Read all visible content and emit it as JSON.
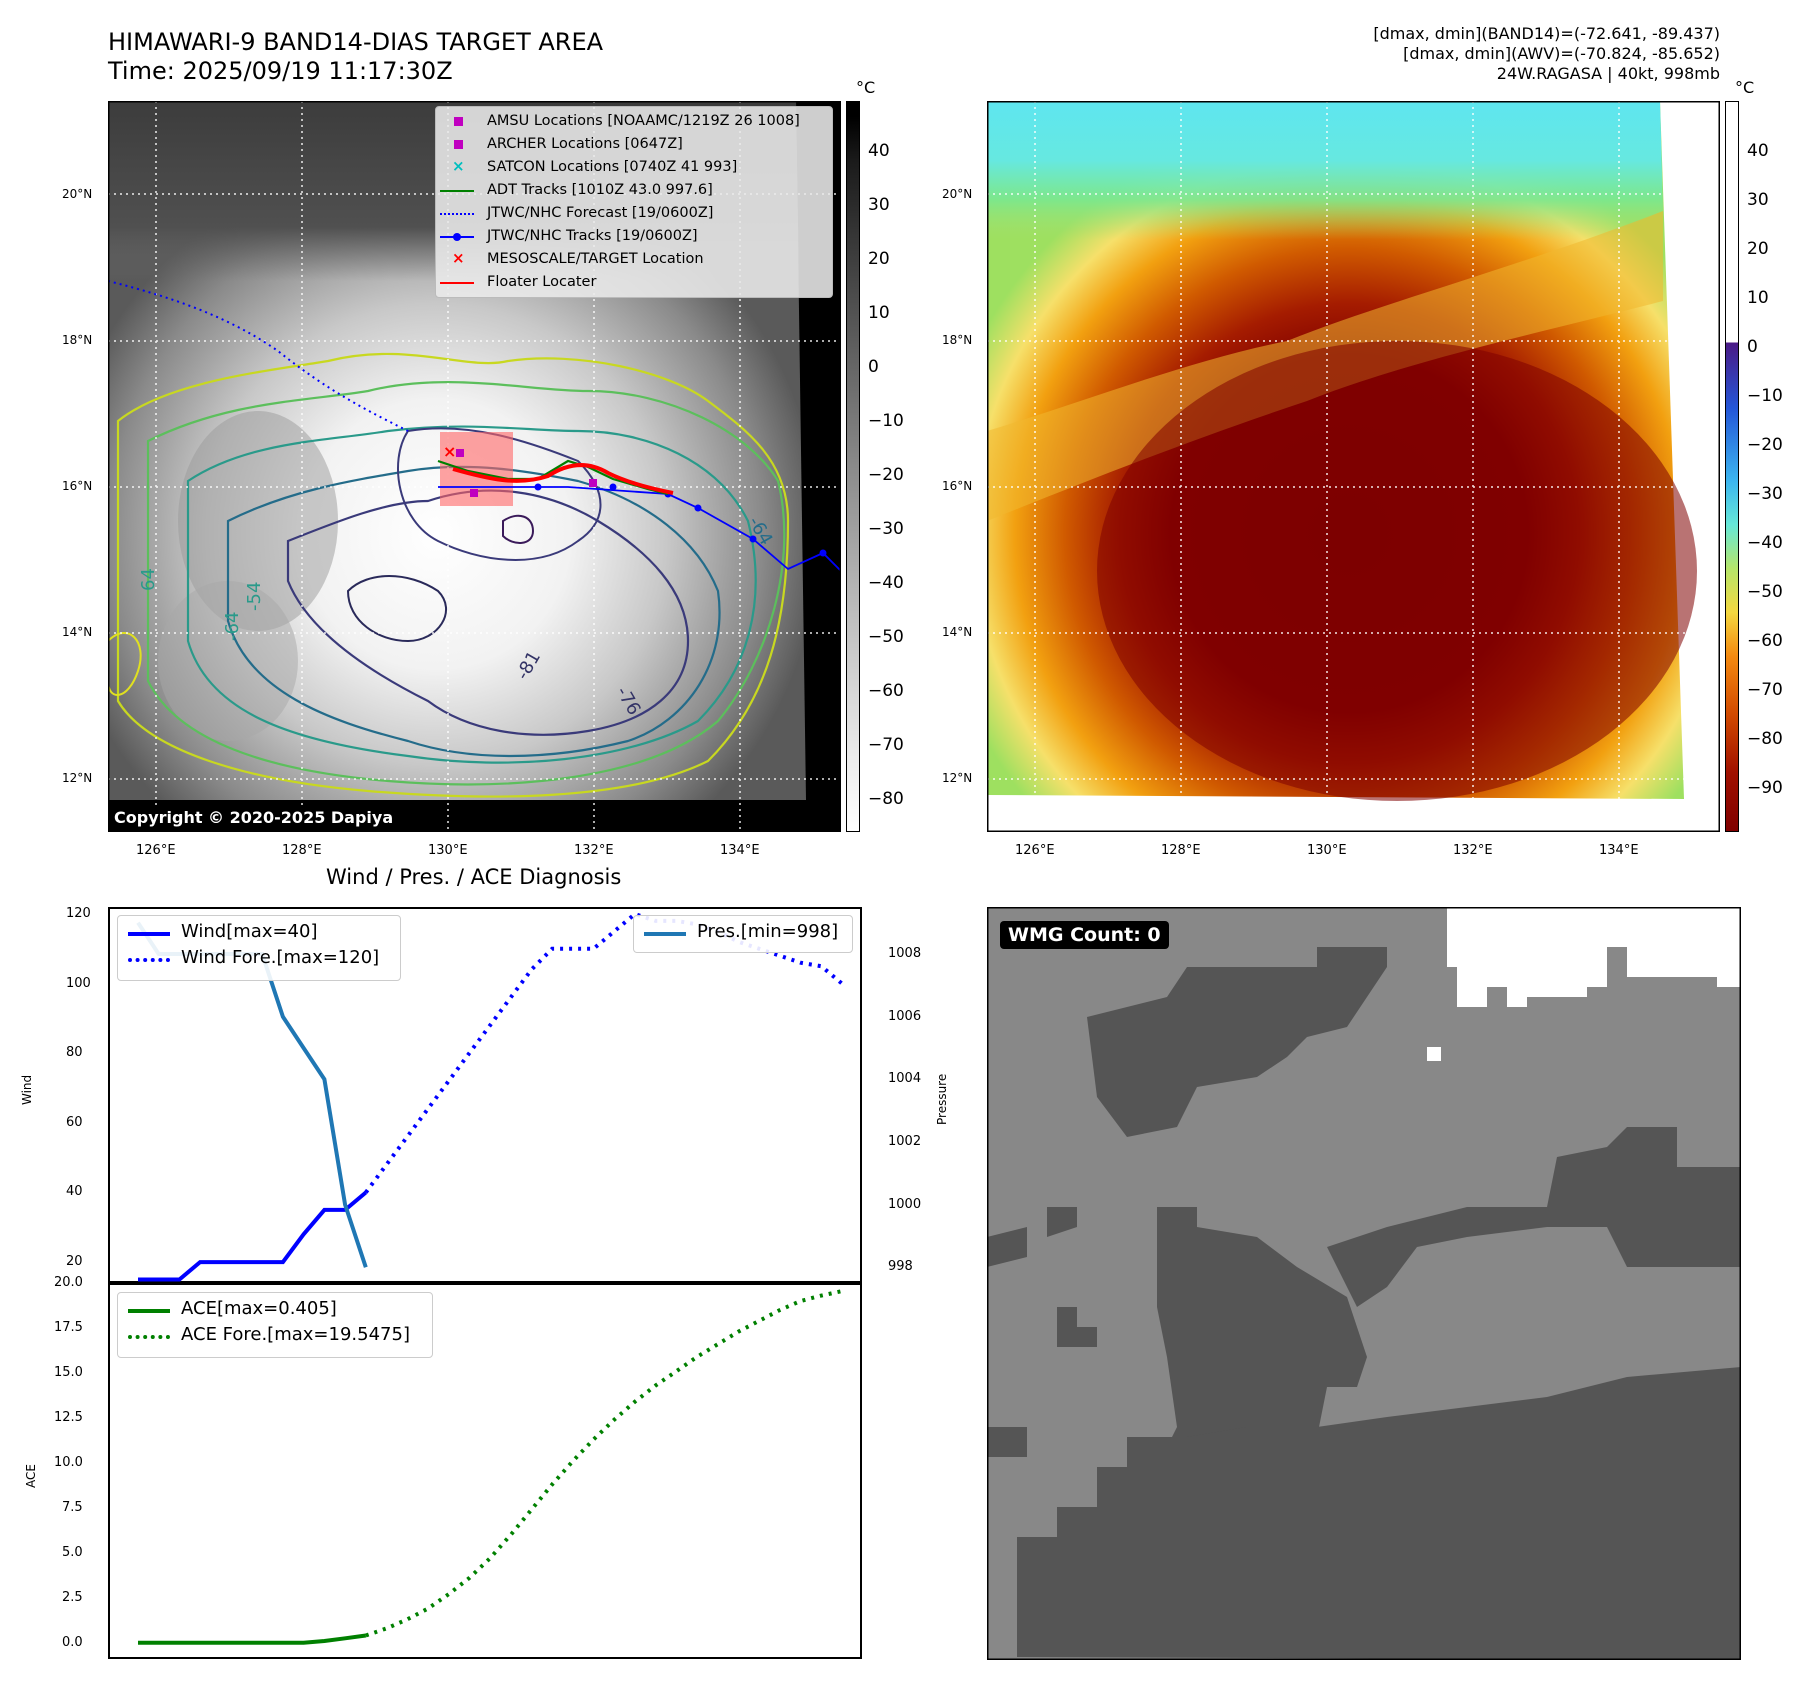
{
  "header": {
    "title_line1": "HIMAWARI-9 BAND14-DIAS TARGET AREA",
    "title_line2": "Time: 2025/09/19 11:17:30Z",
    "info_line1": "[dmax, dmin](BAND14)=(-72.641, -89.437)",
    "info_line2": "[dmax, dmin](AWV)=(-70.824, -85.652)",
    "info_line3": "24W.RAGASA | 40kt, 998mb"
  },
  "maps": {
    "lon_ticks": [
      "126°E",
      "128°E",
      "130°E",
      "132°E",
      "134°E"
    ],
    "lat_ticks": [
      "20°N",
      "18°N",
      "16°N",
      "14°N",
      "12°N"
    ],
    "copyright": "Copyright © 2020-2025 Dapiya",
    "contour_labels": [
      "-81",
      "-76",
      "-64",
      "-54",
      "-64",
      "64"
    ],
    "ir_colorbar": {
      "unit": "°C",
      "ticks": [
        "40",
        "30",
        "20",
        "10",
        "0",
        "−10",
        "−20",
        "−30",
        "−40",
        "−50",
        "−60",
        "−70",
        "−80"
      ]
    },
    "awv_colorbar": {
      "unit": "°C",
      "ticks": [
        "40",
        "30",
        "20",
        "10",
        "0",
        "−10",
        "−20",
        "−30",
        "−40",
        "−50",
        "−60",
        "−70",
        "−80",
        "−90"
      ]
    },
    "legend": [
      {
        "label": "AMSU Locations [NOAAMC/1219Z 26 1008]",
        "color": "#c000c0",
        "marker": "square"
      },
      {
        "label": "ARCHER Locations [0647Z]",
        "color": "#c000c0",
        "marker": "square"
      },
      {
        "label": "SATCON Locations [0740Z 41 993]",
        "color": "#00bfbf",
        "marker": "x"
      },
      {
        "label": "ADT Tracks [1010Z 43.0 997.6]",
        "color": "#008000",
        "marker": "line"
      },
      {
        "label": "JTWC/NHC Forecast [19/0600Z]",
        "color": "#0000ff",
        "marker": "dotted"
      },
      {
        "label": "JTWC/NHC Tracks [19/0600Z]",
        "color": "#0000ff",
        "marker": "line-dot"
      },
      {
        "label": "MESOSCALE/TARGET Location",
        "color": "#ff0000",
        "marker": "x"
      },
      {
        "label": "Floater Locater",
        "color": "#ff0000",
        "marker": "line"
      }
    ]
  },
  "diagnosis": {
    "title": "Wind / Pres. / ACE Diagnosis",
    "wind_ylabel": "Wind",
    "pres_ylabel": "Pressure",
    "ace_ylabel": "ACE",
    "wind_ticks": [
      "120",
      "100",
      "80",
      "60",
      "40",
      "20"
    ],
    "pres_ticks": [
      "1008",
      "1006",
      "1004",
      "1002",
      "1000",
      "998"
    ],
    "ace_ticks": [
      "20.0",
      "17.5",
      "15.0",
      "12.5",
      "10.0",
      "7.5",
      "5.0",
      "2.5",
      "0.0"
    ],
    "legend_wind": "Wind[max=40]",
    "legend_wind_fore": "Wind Fore.[max=120]",
    "legend_pres": "Pres.[min=998]",
    "legend_ace": "ACE[max=0.405]",
    "legend_ace_fore": "ACE Fore.[max=19.5475]"
  },
  "wmg": {
    "badge": "WMG Count: 0"
  },
  "chart_data": [
    {
      "type": "line",
      "panel": "wind-pressure",
      "x": [
        0,
        1,
        2,
        3,
        4,
        5,
        6,
        7,
        8,
        9,
        10,
        11,
        12,
        13,
        14,
        15,
        16,
        17,
        18,
        19,
        20,
        21,
        22,
        23,
        24,
        25,
        26,
        27,
        28,
        29,
        30,
        31,
        32,
        33,
        34
      ],
      "wind_ylim": [
        14,
        122
      ],
      "pres_ylim": [
        997.5,
        1009.5
      ],
      "series": [
        {
          "name": "Wind[max=40]",
          "axis": "left",
          "style": "solid",
          "color": "#0000ff",
          "values": [
            15,
            15,
            15,
            20,
            20,
            20,
            20,
            20,
            28,
            35,
            35,
            40,
            null,
            null,
            null,
            null,
            null,
            null,
            null,
            null,
            null,
            null,
            null,
            null,
            null,
            null,
            null,
            null,
            null,
            null,
            null,
            null,
            null,
            null,
            null
          ]
        },
        {
          "name": "Wind Fore.[max=120]",
          "axis": "left",
          "style": "dotted",
          "color": "#0000ff",
          "values": [
            null,
            null,
            null,
            null,
            null,
            null,
            null,
            null,
            null,
            null,
            null,
            40,
            48,
            56,
            64,
            72,
            80,
            88,
            96,
            104,
            110,
            110,
            110,
            115,
            120,
            118,
            118,
            117,
            115,
            112,
            110,
            108,
            106,
            105,
            100
          ]
        },
        {
          "name": "Pres.[min=998]",
          "axis": "right",
          "style": "solid",
          "color": "#1f77b4",
          "values": [
            1009,
            1008,
            1008,
            1008,
            1008,
            1008,
            1008,
            1006,
            1005,
            1004,
            1000,
            998,
            null,
            null,
            null,
            null,
            null,
            null,
            null,
            null,
            null,
            null,
            null,
            null,
            null,
            null,
            null,
            null,
            null,
            null,
            null,
            null,
            null,
            null,
            null
          ]
        }
      ]
    },
    {
      "type": "line",
      "panel": "ace",
      "x": [
        0,
        1,
        2,
        3,
        4,
        5,
        6,
        7,
        8,
        9,
        10,
        11,
        12,
        13,
        14,
        15,
        16,
        17,
        18,
        19,
        20,
        21,
        22,
        23,
        24,
        25,
        26,
        27,
        28,
        29,
        30,
        31,
        32,
        33,
        34
      ],
      "ylim": [
        -0.9,
        20.0
      ],
      "series": [
        {
          "name": "ACE[max=0.405]",
          "style": "solid",
          "color": "#008000",
          "values": [
            0,
            0,
            0,
            0,
            0,
            0,
            0,
            0,
            0,
            0.1,
            0.25,
            0.405,
            null,
            null,
            null,
            null,
            null,
            null,
            null,
            null,
            null,
            null,
            null,
            null,
            null,
            null,
            null,
            null,
            null,
            null,
            null,
            null,
            null,
            null,
            null
          ]
        },
        {
          "name": "ACE Fore.[max=19.5475]",
          "style": "dotted",
          "color": "#008000",
          "values": [
            null,
            null,
            null,
            null,
            null,
            null,
            null,
            null,
            null,
            null,
            null,
            0.405,
            0.8,
            1.3,
            1.9,
            2.7,
            3.6,
            4.7,
            6.0,
            7.4,
            8.8,
            10.1,
            11.3,
            12.4,
            13.4,
            14.3,
            15.1,
            15.9,
            16.6,
            17.3,
            17.9,
            18.5,
            19.0,
            19.3,
            19.5475
          ]
        }
      ]
    }
  ]
}
